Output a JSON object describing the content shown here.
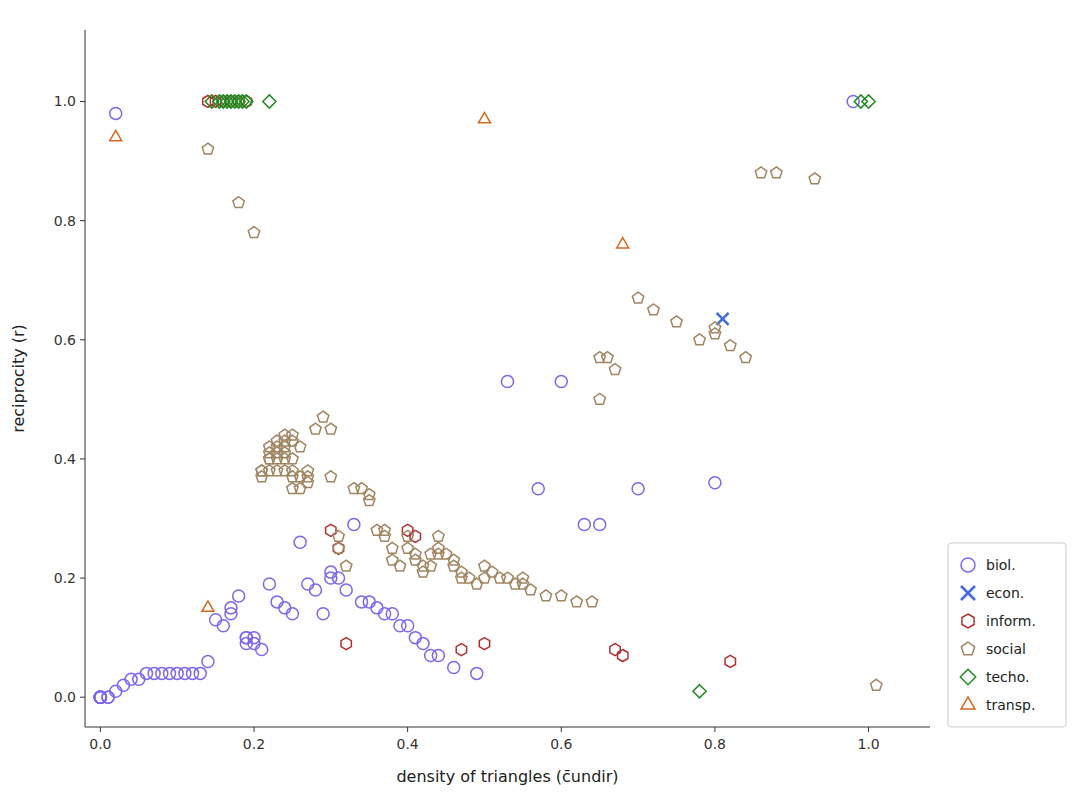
{
  "chart_data": {
    "type": "scatter",
    "xlabel": "density of triangles (c̄undir)",
    "ylabel": "reciprocity (r)",
    "xlim": [
      -0.02,
      1.08
    ],
    "ylim": [
      -0.05,
      1.12
    ],
    "xticks": [
      {
        "value": 0,
        "label": "0.0"
      },
      0.2,
      0.4,
      0.6,
      0.8,
      {
        "value": 1,
        "label": "1.0"
      }
    ],
    "yticks": [
      {
        "value": 0,
        "label": "0.0"
      },
      0.2,
      0.4,
      0.6,
      0.8,
      {
        "value": 1,
        "label": "1.0"
      }
    ],
    "grid": false,
    "legend": "lower right",
    "series": [
      {
        "name": "biol.",
        "color": "#7B68EE",
        "marker": "circle",
        "x": [
          0.02,
          0.0,
          0.0,
          0.0,
          0.0,
          0.0,
          0.0,
          0.0,
          0.0,
          0.0,
          0.0,
          0.01,
          0.01,
          0.02,
          0.03,
          0.04,
          0.05,
          0.06,
          0.07,
          0.08,
          0.09,
          0.1,
          0.11,
          0.12,
          0.13,
          0.14,
          0.15,
          0.16,
          0.17,
          0.17,
          0.18,
          0.19,
          0.19,
          0.19,
          0.2,
          0.2,
          0.21,
          0.22,
          0.23,
          0.24,
          0.25,
          0.26,
          0.27,
          0.28,
          0.29,
          0.3,
          0.3,
          0.31,
          0.32,
          0.33,
          0.34,
          0.35,
          0.36,
          0.37,
          0.38,
          0.39,
          0.4,
          0.41,
          0.42,
          0.43,
          0.44,
          0.46,
          0.49,
          0.53,
          0.57,
          0.6,
          0.63,
          0.65,
          0.7,
          0.8,
          0.98
        ],
        "values": [
          0.98,
          0.0,
          0.0,
          0.0,
          0.0,
          0.0,
          0.0,
          0.0,
          0.0,
          0.0,
          0.0,
          0.0,
          0.0,
          0.01,
          0.02,
          0.03,
          0.03,
          0.04,
          0.04,
          0.04,
          0.04,
          0.04,
          0.04,
          0.04,
          0.04,
          0.06,
          0.13,
          0.12,
          0.14,
          0.15,
          0.17,
          0.1,
          0.1,
          0.09,
          0.1,
          0.09,
          0.08,
          0.19,
          0.16,
          0.15,
          0.14,
          0.26,
          0.19,
          0.18,
          0.14,
          0.21,
          0.2,
          0.2,
          0.18,
          0.29,
          0.16,
          0.16,
          0.15,
          0.14,
          0.14,
          0.12,
          0.12,
          0.1,
          0.09,
          0.07,
          0.07,
          0.05,
          0.04,
          0.53,
          0.35,
          0.53,
          0.29,
          0.29,
          0.35,
          0.36,
          1.0
        ]
      },
      {
        "name": "econ.",
        "color": "#4169E1",
        "marker": "x",
        "x": [
          0.81
        ],
        "values": [
          0.635
        ]
      },
      {
        "name": "inform.",
        "color": "#B03030",
        "marker": "hexagon",
        "x": [
          0.14,
          0.15,
          0.16,
          0.17,
          0.18,
          0.19,
          0.3,
          0.31,
          0.32,
          0.4,
          0.41,
          0.47,
          0.5,
          0.67,
          0.68,
          0.82
        ],
        "values": [
          1.0,
          1.0,
          1.0,
          1.0,
          1.0,
          1.0,
          0.28,
          0.25,
          0.09,
          0.28,
          0.27,
          0.08,
          0.09,
          0.08,
          0.07,
          0.06
        ]
      },
      {
        "name": "social",
        "color": "#A08560",
        "marker": "pentagon",
        "x": [
          0.14,
          0.18,
          0.19,
          0.2,
          0.21,
          0.21,
          0.21,
          0.22,
          0.22,
          0.22,
          0.22,
          0.22,
          0.23,
          0.23,
          0.23,
          0.23,
          0.23,
          0.24,
          0.24,
          0.24,
          0.24,
          0.24,
          0.24,
          0.25,
          0.25,
          0.25,
          0.25,
          0.25,
          0.25,
          0.26,
          0.26,
          0.26,
          0.27,
          0.27,
          0.27,
          0.28,
          0.29,
          0.3,
          0.3,
          0.31,
          0.31,
          0.32,
          0.33,
          0.34,
          0.35,
          0.35,
          0.36,
          0.37,
          0.37,
          0.38,
          0.38,
          0.39,
          0.4,
          0.4,
          0.41,
          0.41,
          0.42,
          0.42,
          0.43,
          0.43,
          0.44,
          0.44,
          0.44,
          0.45,
          0.46,
          0.46,
          0.47,
          0.47,
          0.48,
          0.49,
          0.5,
          0.5,
          0.51,
          0.52,
          0.53,
          0.54,
          0.55,
          0.55,
          0.56,
          0.58,
          0.6,
          0.62,
          0.64,
          0.65,
          0.65,
          0.66,
          0.67,
          0.7,
          0.72,
          0.75,
          0.78,
          0.8,
          0.8,
          0.82,
          0.84,
          0.86,
          0.88,
          0.93,
          1.01
        ],
        "values": [
          0.92,
          0.83,
          1.0,
          0.78,
          0.38,
          0.38,
          0.37,
          0.42,
          0.41,
          0.4,
          0.4,
          0.38,
          0.43,
          0.42,
          0.41,
          0.4,
          0.38,
          0.44,
          0.43,
          0.42,
          0.41,
          0.4,
          0.38,
          0.44,
          0.43,
          0.4,
          0.38,
          0.37,
          0.35,
          0.42,
          0.37,
          0.35,
          0.38,
          0.37,
          0.36,
          0.45,
          0.47,
          0.45,
          0.37,
          0.27,
          0.25,
          0.22,
          0.35,
          0.35,
          0.34,
          0.33,
          0.28,
          0.28,
          0.27,
          0.25,
          0.23,
          0.22,
          0.27,
          0.25,
          0.24,
          0.23,
          0.22,
          0.21,
          0.24,
          0.22,
          0.27,
          0.25,
          0.24,
          0.24,
          0.23,
          0.22,
          0.21,
          0.2,
          0.2,
          0.19,
          0.22,
          0.2,
          0.21,
          0.2,
          0.2,
          0.19,
          0.2,
          0.19,
          0.18,
          0.17,
          0.17,
          0.16,
          0.16,
          0.57,
          0.5,
          0.57,
          0.55,
          0.67,
          0.65,
          0.63,
          0.6,
          0.62,
          0.61,
          0.59,
          0.57,
          0.88,
          0.88,
          0.87,
          0.02
        ]
      },
      {
        "name": "techo.",
        "color": "#228B22",
        "marker": "diamond",
        "x": [
          0.155,
          0.16,
          0.165,
          0.17,
          0.175,
          0.18,
          0.185,
          0.19,
          0.145,
          0.22,
          0.78,
          0.99,
          1.0
        ],
        "values": [
          1.0,
          1.0,
          1.0,
          1.0,
          1.0,
          1.0,
          1.0,
          1.0,
          1.0,
          1.0,
          0.01,
          1.0,
          1.0
        ]
      },
      {
        "name": "transp.",
        "color": "#D2691E",
        "marker": "triangle",
        "x": [
          0.02,
          0.14,
          0.5,
          0.68
        ],
        "values": [
          0.94,
          0.15,
          0.97,
          0.76
        ]
      }
    ]
  }
}
